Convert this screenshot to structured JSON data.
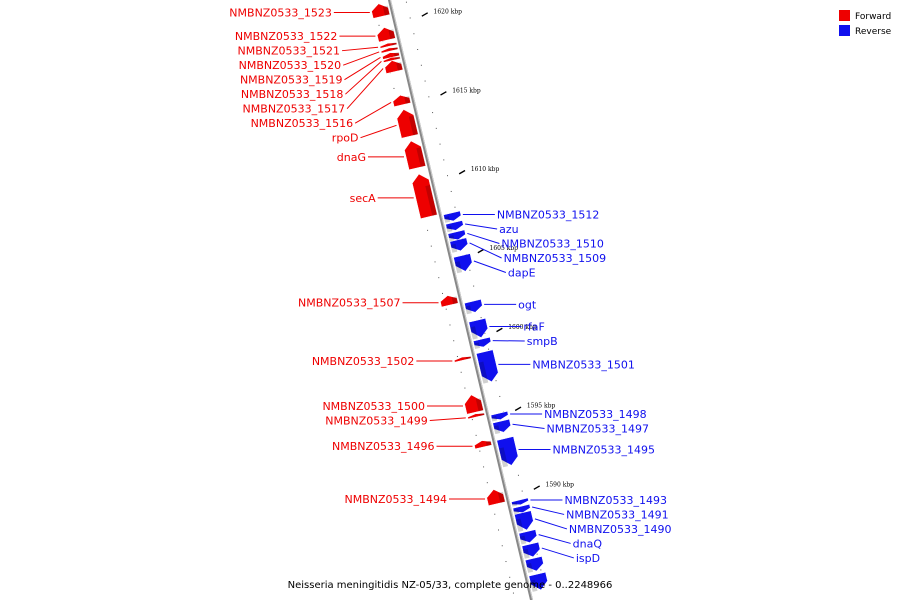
{
  "colors": {
    "forward": "#ee0000",
    "reverse": "#1010ee",
    "backbone": "#888888"
  },
  "legend": [
    {
      "label": "Forward",
      "color": "#ee0000"
    },
    {
      "label": "Reverse",
      "color": "#1010ee"
    }
  ],
  "caption": "Neisseria meningitidis NZ-05/33, complete genome - 0..2248966",
  "axis": {
    "kbp_start": 1621.5,
    "kbp_end": 1583.2
  },
  "ticks": [
    {
      "kbp": 1620,
      "label": "1620 kbp"
    },
    {
      "kbp": 1615,
      "label": "1615 kbp"
    },
    {
      "kbp": 1610,
      "label": "1610 kbp"
    },
    {
      "kbp": 1605,
      "label": "1605 kbp"
    },
    {
      "kbp": 1600,
      "label": "1600 kbp"
    },
    {
      "kbp": 1595,
      "label": "1595 kbp"
    },
    {
      "kbp": 1590,
      "label": "1590 kbp"
    }
  ],
  "genes": [
    {
      "name": "NMBNZ0533_1523",
      "strand": "forward",
      "start_kbp": 1621.3,
      "end_kbp": 1620.5
    },
    {
      "name": "NMBNZ0533_1522",
      "strand": "forward",
      "start_kbp": 1619.8,
      "end_kbp": 1619.0
    },
    {
      "name": "NMBNZ0533_1521",
      "strand": "forward",
      "start_kbp": 1618.8,
      "end_kbp": 1618.6
    },
    {
      "name": "NMBNZ0533_1520",
      "strand": "forward",
      "start_kbp": 1618.5,
      "end_kbp": 1618.3
    },
    {
      "name": "NMBNZ0533_1519",
      "strand": "forward",
      "start_kbp": 1618.2,
      "end_kbp": 1617.9
    },
    {
      "name": "NMBNZ0533_1518",
      "strand": "forward",
      "start_kbp": 1617.9,
      "end_kbp": 1617.7
    },
    {
      "name": "NMBNZ0533_1517",
      "strand": "forward",
      "start_kbp": 1617.7,
      "end_kbp": 1617.0
    },
    {
      "name": "NMBNZ0533_1516",
      "strand": "forward",
      "start_kbp": 1615.5,
      "end_kbp": 1614.9
    },
    {
      "name": "rpoD",
      "strand": "forward",
      "start_kbp": 1614.6,
      "end_kbp": 1612.9
    },
    {
      "name": "dnaG",
      "strand": "forward",
      "start_kbp": 1612.6,
      "end_kbp": 1610.9
    },
    {
      "name": "secA",
      "strand": "forward",
      "start_kbp": 1610.5,
      "end_kbp": 1607.8
    },
    {
      "name": "NMBNZ0533_1512",
      "strand": "reverse",
      "start_kbp": 1607.7,
      "end_kbp": 1607.2
    },
    {
      "name": "azu",
      "strand": "reverse",
      "start_kbp": 1607.1,
      "end_kbp": 1606.6
    },
    {
      "name": "NMBNZ0533_1510",
      "strand": "reverse",
      "start_kbp": 1606.5,
      "end_kbp": 1606.0
    },
    {
      "name": "NMBNZ0533_1509",
      "strand": "reverse",
      "start_kbp": 1606.0,
      "end_kbp": 1605.3
    },
    {
      "name": "dapE",
      "strand": "reverse",
      "start_kbp": 1605.0,
      "end_kbp": 1604.0
    },
    {
      "name": "NMBNZ0533_1507",
      "strand": "forward",
      "start_kbp": 1602.8,
      "end_kbp": 1602.2
    },
    {
      "name": "ogt",
      "strand": "reverse",
      "start_kbp": 1602.1,
      "end_kbp": 1601.4
    },
    {
      "name": "rfaF",
      "strand": "reverse",
      "start_kbp": 1600.9,
      "end_kbp": 1599.8
    },
    {
      "name": "smpB",
      "strand": "reverse",
      "start_kbp": 1599.7,
      "end_kbp": 1599.2
    },
    {
      "name": "NMBNZ0533_1502",
      "strand": "forward",
      "start_kbp": 1598.9,
      "end_kbp": 1598.7
    },
    {
      "name": "NMBNZ0533_1501",
      "strand": "reverse",
      "start_kbp": 1598.9,
      "end_kbp": 1597.0
    },
    {
      "name": "NMBNZ0533_1500",
      "strand": "forward",
      "start_kbp": 1596.5,
      "end_kbp": 1595.4
    },
    {
      "name": "NMBNZ0533_1499",
      "strand": "forward",
      "start_kbp": 1595.3,
      "end_kbp": 1595.1
    },
    {
      "name": "NMBNZ0533_1498",
      "strand": "reverse",
      "start_kbp": 1595.0,
      "end_kbp": 1594.6
    },
    {
      "name": "NMBNZ0533_1497",
      "strand": "reverse",
      "start_kbp": 1594.5,
      "end_kbp": 1593.8
    },
    {
      "name": "NMBNZ0533_1496",
      "strand": "forward",
      "start_kbp": 1593.6,
      "end_kbp": 1593.2
    },
    {
      "name": "NMBNZ0533_1495",
      "strand": "reverse",
      "start_kbp": 1593.4,
      "end_kbp": 1591.7
    },
    {
      "name": "NMBNZ0533_1494",
      "strand": "forward",
      "start_kbp": 1590.5,
      "end_kbp": 1589.6
    },
    {
      "name": "NMBNZ0533_1493",
      "strand": "reverse",
      "start_kbp": 1589.5,
      "end_kbp": 1589.2
    },
    {
      "name": "NMBNZ0533_1491",
      "strand": "reverse",
      "start_kbp": 1589.1,
      "end_kbp": 1588.7
    },
    {
      "name": "NMBNZ0533_1490",
      "strand": "reverse",
      "start_kbp": 1588.7,
      "end_kbp": 1587.6
    },
    {
      "name": "dnaQ",
      "strand": "reverse",
      "start_kbp": 1587.5,
      "end_kbp": 1586.8
    },
    {
      "name": "ispD",
      "strand": "reverse",
      "start_kbp": 1586.7,
      "end_kbp": 1585.9
    },
    {
      "name": "",
      "strand": "reverse",
      "start_kbp": 1585.8,
      "end_kbp": 1585.0
    },
    {
      "name": "",
      "strand": "reverse",
      "start_kbp": 1584.8,
      "end_kbp": 1583.8
    }
  ]
}
